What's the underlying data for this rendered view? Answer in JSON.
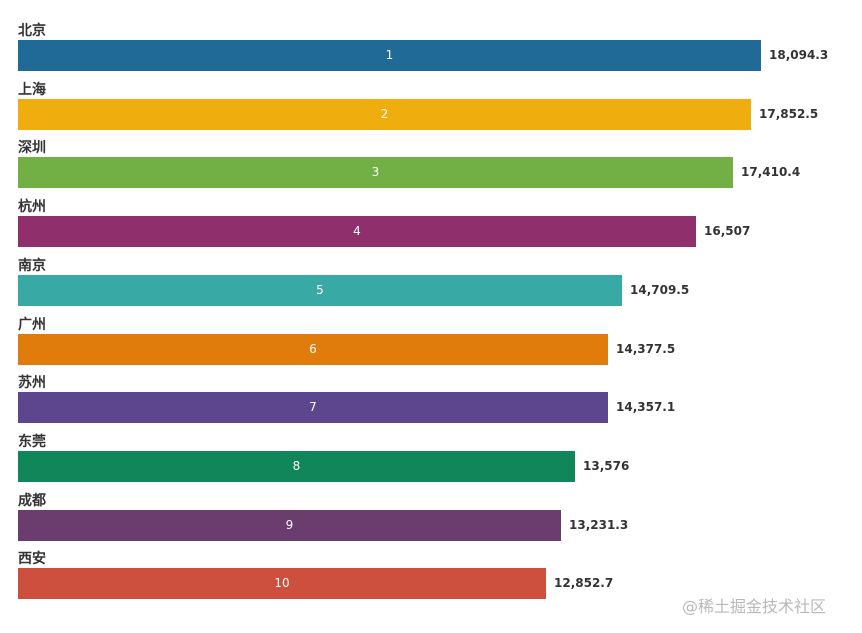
{
  "chart_data": {
    "type": "bar",
    "orientation": "horizontal",
    "title": "",
    "xlabel": "",
    "ylabel": "",
    "grid": false,
    "legend": "none",
    "categories": [
      "北京",
      "上海",
      "深圳",
      "杭州",
      "南京",
      "广州",
      "苏州",
      "东莞",
      "成都",
      "西安"
    ],
    "ranks": [
      "1",
      "2",
      "3",
      "4",
      "5",
      "6",
      "7",
      "8",
      "9",
      "10"
    ],
    "values": [
      18094.3,
      17852.5,
      17410.4,
      16507,
      14709.5,
      14377.5,
      14357.1,
      13576,
      13231.3,
      12852.7
    ],
    "value_labels": [
      "18,094.3",
      "17,852.5",
      "17,410.4",
      "16,507",
      "14,709.5",
      "14,377.5",
      "14,357.1",
      "13,576",
      "13,231.3",
      "12,852.7"
    ],
    "colors": [
      "#1f6a96",
      "#efae0e",
      "#72b046",
      "#8f2f6c",
      "#38a9a4",
      "#e07c0b",
      "#5e468e",
      "#11865a",
      "#6b3d6e",
      "#cd4f3d"
    ]
  },
  "watermark": "@稀土掘金技术社区"
}
